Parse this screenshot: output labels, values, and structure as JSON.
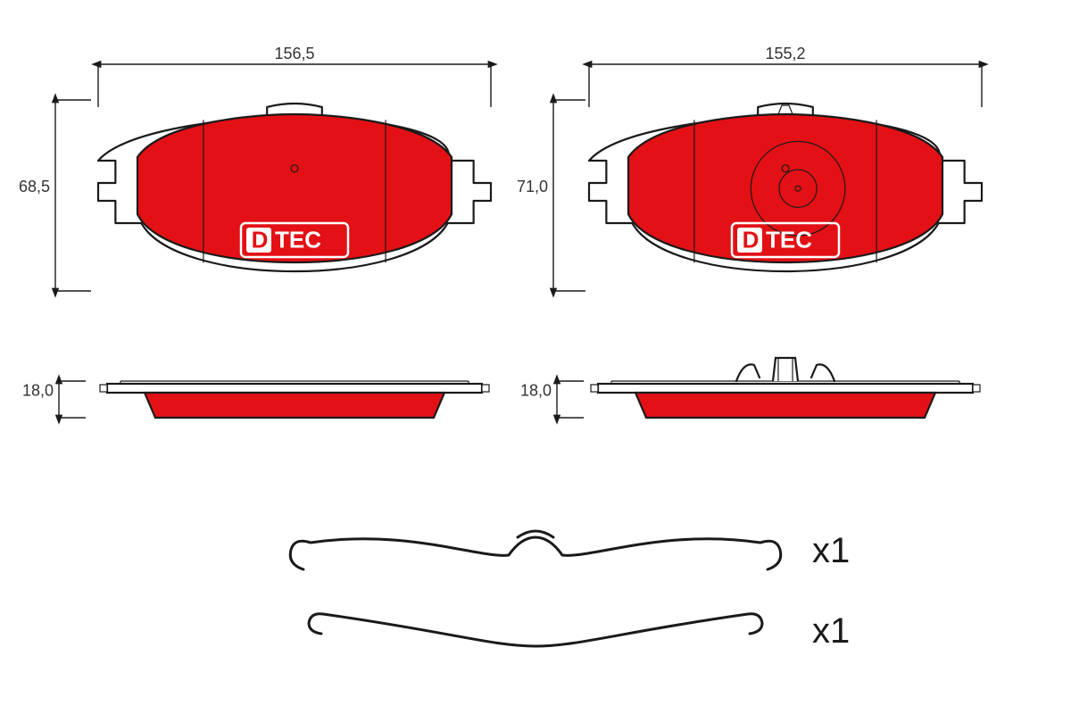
{
  "colors": {
    "red": "#e31015",
    "stroke": "#1a1a1a",
    "dim_text": "#333333",
    "bg": "#ffffff",
    "white": "#ffffff"
  },
  "stroke_width": {
    "outline": 2.2,
    "dim": 1.4,
    "thin": 1.2
  },
  "left_pad": {
    "width_label": "156,5",
    "height_label": "68,5",
    "logo": "DTEC"
  },
  "right_pad": {
    "width_label": "155,2",
    "height_label": "71,0",
    "logo": "DTEC"
  },
  "left_side": {
    "thickness_label": "18,0"
  },
  "right_side": {
    "thickness_label": "18,0"
  },
  "clip_qty_1": "x1",
  "clip_qty_2": "x1",
  "logo_font_size": 26,
  "dim_font_size": 18,
  "qty_font_size": 40
}
